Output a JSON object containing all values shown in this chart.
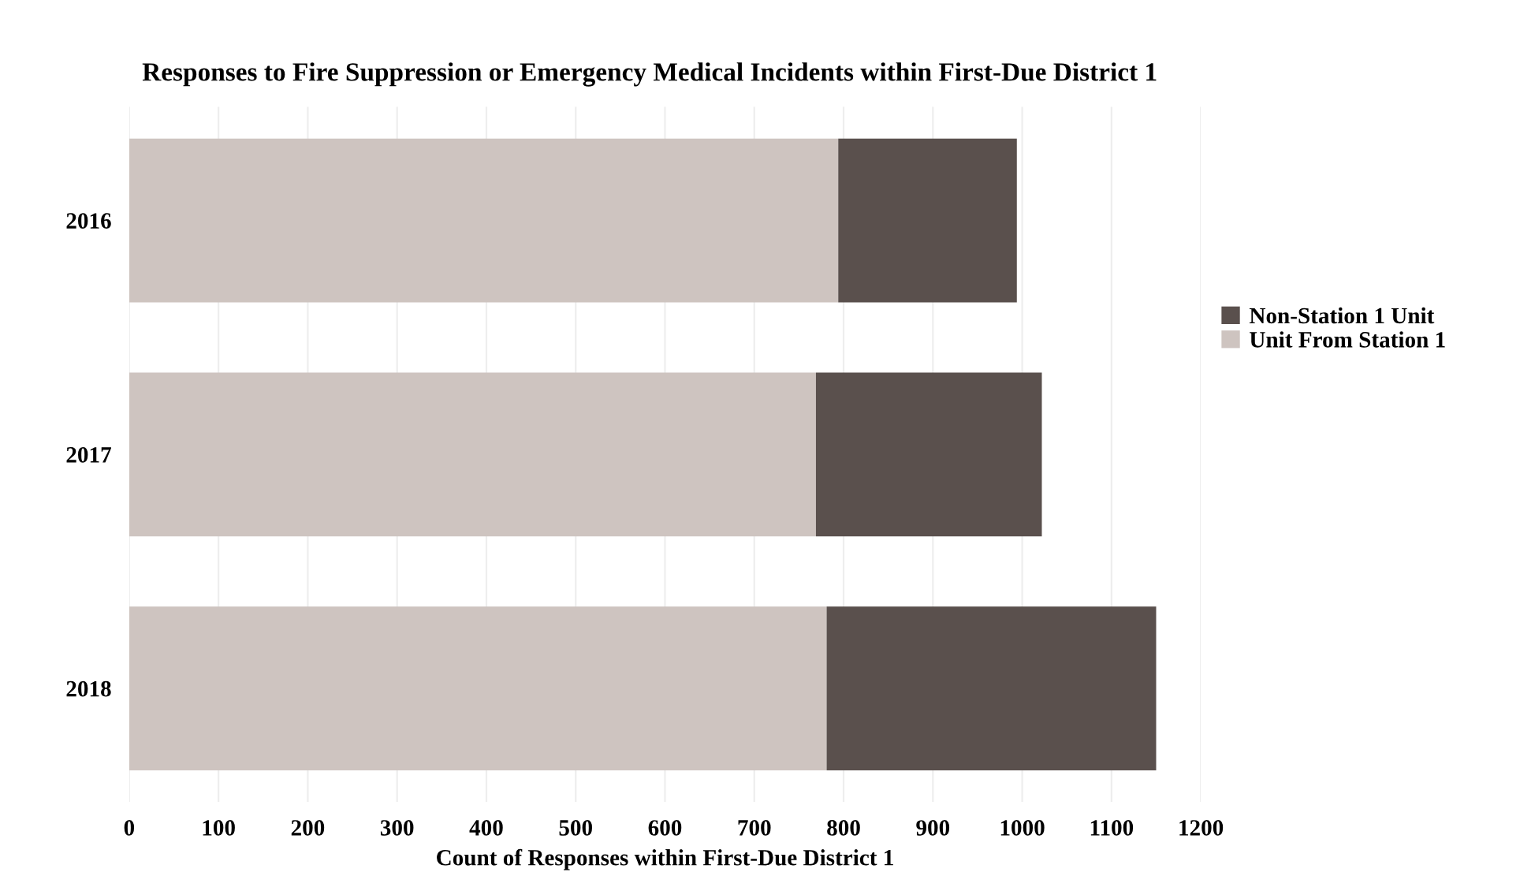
{
  "chart_data": {
    "type": "bar",
    "orientation": "horizontal",
    "stacked": true,
    "title": "Responses to Fire Suppression or Emergency Medical Incidents within First-Due District 1",
    "xlabel": "Count of Responses within First-Due District 1",
    "categories": [
      "2016",
      "2017",
      "2018"
    ],
    "series": [
      {
        "name": "Unit From Station 1",
        "color": "#cec4c0",
        "values": [
          794,
          769,
          781
        ]
      },
      {
        "name": "Non-Station 1 Unit",
        "color": "#5a504d",
        "values": [
          200,
          253,
          369
        ]
      }
    ],
    "xlim": [
      0,
      1200
    ],
    "xticks": [
      0,
      100,
      200,
      300,
      400,
      500,
      600,
      700,
      800,
      900,
      1000,
      1100,
      1200
    ],
    "grid": "x",
    "legend": "right"
  }
}
